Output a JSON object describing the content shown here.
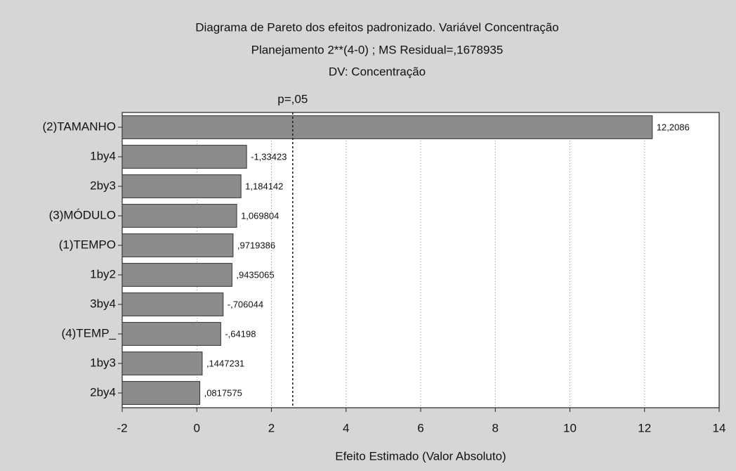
{
  "chart_data": {
    "type": "bar",
    "orientation": "horizontal",
    "title": "Diagrama de Pareto dos efeitos padronizado. Variável Concentração",
    "subtitle": "Planejamento 2**(4-0) ; MS Residual=,1678935",
    "subtitle2": "DV: Concentração",
    "x_label": "Efeito Estimado (Valor Absoluto)",
    "categories": [
      "(2)TAMANHO",
      "1by4",
      "2by3",
      "(3)MÓDULO",
      "(1)TEMPO",
      "1by2",
      "3by4",
      "(4)TEMP_",
      "1by3",
      "2by4"
    ],
    "values": [
      12.2086,
      1.33423,
      1.184142,
      1.069804,
      0.9719386,
      0.9435065,
      0.706044,
      0.64198,
      0.1447231,
      0.0817575
    ],
    "value_labels": [
      "12,2086",
      "-1,33423",
      "1,184142",
      "1,069804",
      ",9719386",
      ",9435065",
      "-,706044",
      "-,64198",
      ",1447231",
      ",0817575"
    ],
    "color": "#8c8c8c",
    "xlim": [
      -2,
      14
    ],
    "xticks": [
      -2,
      0,
      2,
      4,
      6,
      8,
      10,
      12,
      14
    ],
    "grid": true,
    "reference_line": {
      "value": 2.5706,
      "label": "p=,05"
    }
  }
}
